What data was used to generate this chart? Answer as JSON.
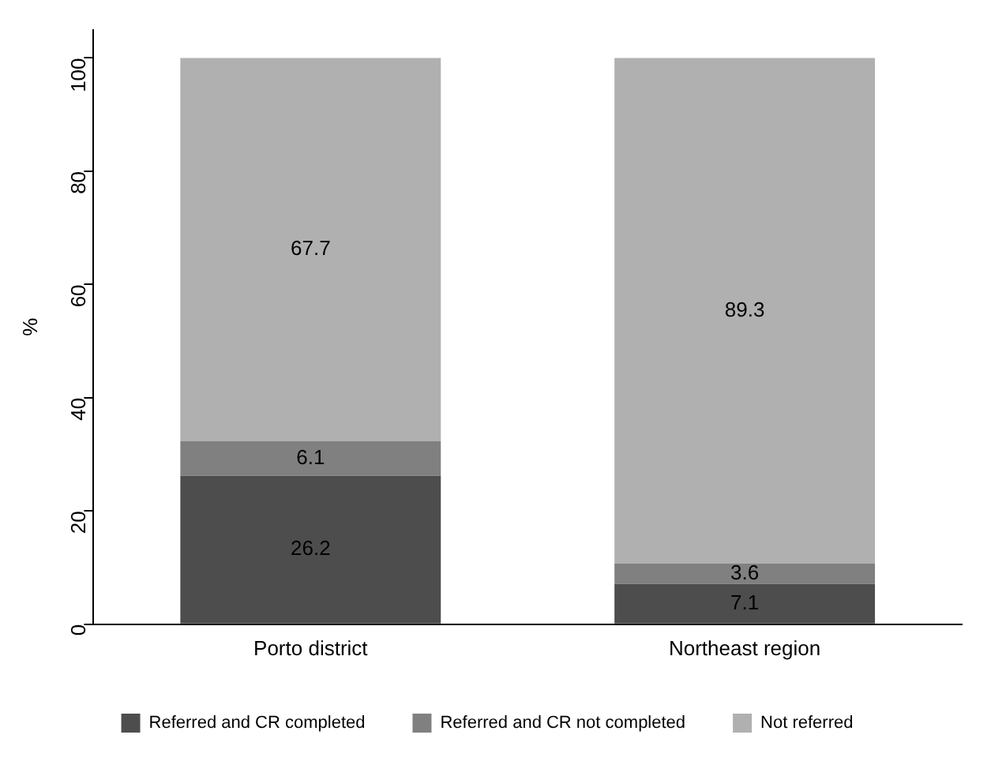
{
  "chart_data": {
    "type": "bar",
    "stacked": true,
    "ylabel": "%",
    "categories": [
      "Porto district",
      "Northeast region"
    ],
    "series": [
      {
        "name": "Referred and CR completed",
        "color": "#4d4d4d",
        "values": [
          26.2,
          7.1
        ]
      },
      {
        "name": "Referred and CR not completed",
        "color": "#808080",
        "values": [
          6.1,
          3.6
        ]
      },
      {
        "name": "Not referred",
        "color": "#b0b0b0",
        "values": [
          67.7,
          89.3
        ]
      }
    ],
    "ylim": [
      0,
      105
    ],
    "yticks": [
      0,
      20,
      40,
      60,
      80,
      100
    ],
    "grid": false,
    "legend": "bottom",
    "data_labels": true
  }
}
